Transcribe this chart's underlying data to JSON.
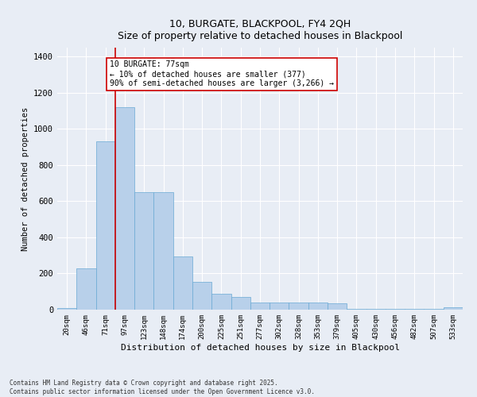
{
  "title1": "10, BURGATE, BLACKPOOL, FY4 2QH",
  "title2": "Size of property relative to detached houses in Blackpool",
  "xlabel": "Distribution of detached houses by size in Blackpool",
  "ylabel": "Number of detached properties",
  "categories": [
    "20sqm",
    "46sqm",
    "71sqm",
    "97sqm",
    "123sqm",
    "148sqm",
    "174sqm",
    "200sqm",
    "225sqm",
    "251sqm",
    "277sqm",
    "302sqm",
    "328sqm",
    "353sqm",
    "379sqm",
    "405sqm",
    "430sqm",
    "456sqm",
    "482sqm",
    "507sqm",
    "533sqm"
  ],
  "values": [
    8,
    230,
    930,
    1120,
    650,
    650,
    295,
    155,
    90,
    70,
    40,
    38,
    40,
    40,
    35,
    5,
    5,
    5,
    5,
    5,
    15
  ],
  "bar_color": "#b8d0ea",
  "bar_edge_color": "#6aaad4",
  "bg_color": "#e8edf5",
  "grid_color": "#ffffff",
  "vline_x": 2.5,
  "vline_color": "#cc0000",
  "annotation_text": "10 BURGATE: 77sqm\n← 10% of detached houses are smaller (377)\n90% of semi-detached houses are larger (3,266) →",
  "annotation_box_color": "#cc0000",
  "ylim": [
    0,
    1450
  ],
  "yticks": [
    0,
    200,
    400,
    600,
    800,
    1000,
    1200,
    1400
  ],
  "footnote": "Contains HM Land Registry data © Crown copyright and database right 2025.\nContains public sector information licensed under the Open Government Licence v3.0."
}
